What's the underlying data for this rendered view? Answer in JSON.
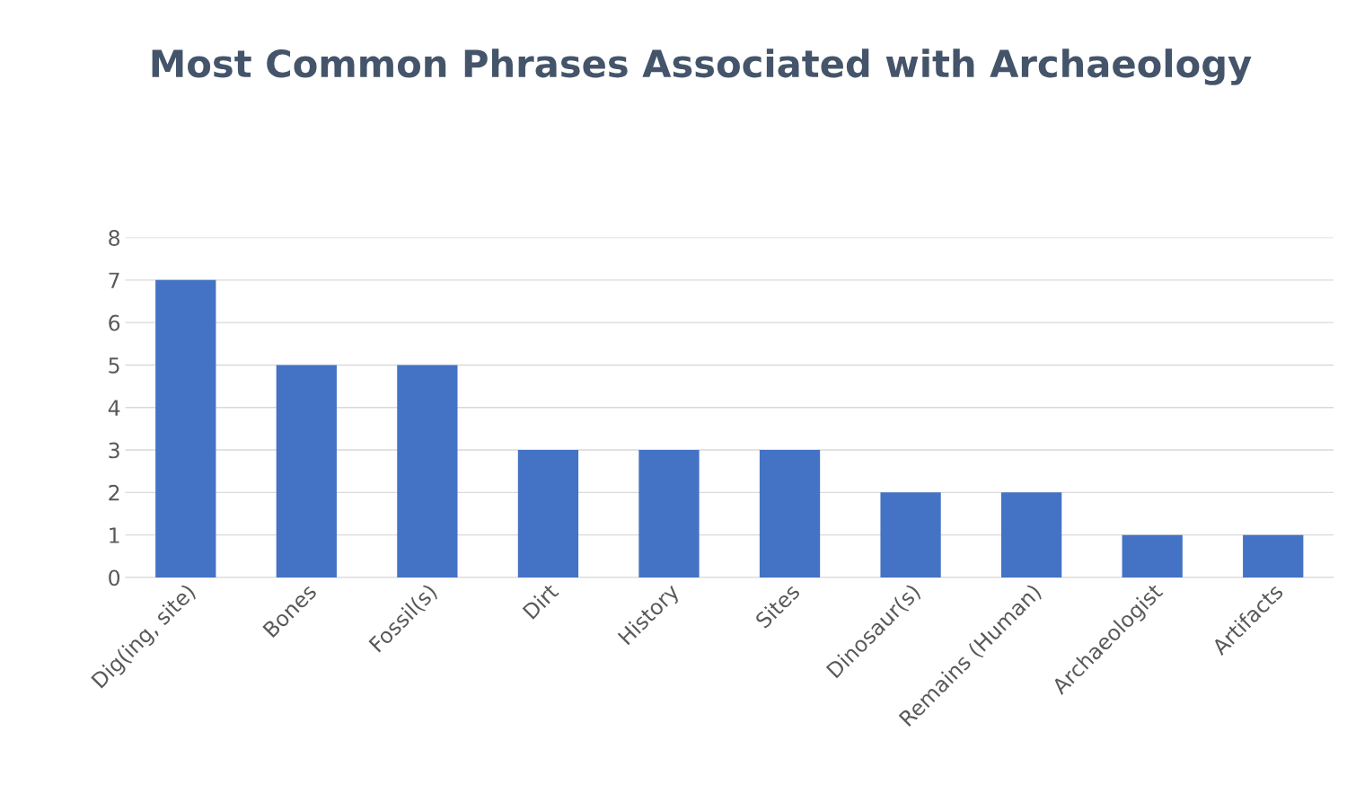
{
  "chart_data": {
    "type": "bar",
    "title": "Most Common Phrases Associated with Archaeology",
    "categories": [
      "Dig(ing, site)",
      "Bones",
      "Fossil(s)",
      "Dirt",
      "History",
      "Sites",
      "Dinosaur(s)",
      "Remains (Human)",
      "Archaeologist",
      "Artifacts"
    ],
    "values": [
      7,
      5,
      5,
      3,
      3,
      3,
      2,
      2,
      1,
      1
    ],
    "color": "#4472c4",
    "ylim": [
      0,
      8
    ],
    "yticks": [
      0,
      1,
      2,
      3,
      4,
      5,
      6,
      7,
      8
    ],
    "grid": "y"
  }
}
